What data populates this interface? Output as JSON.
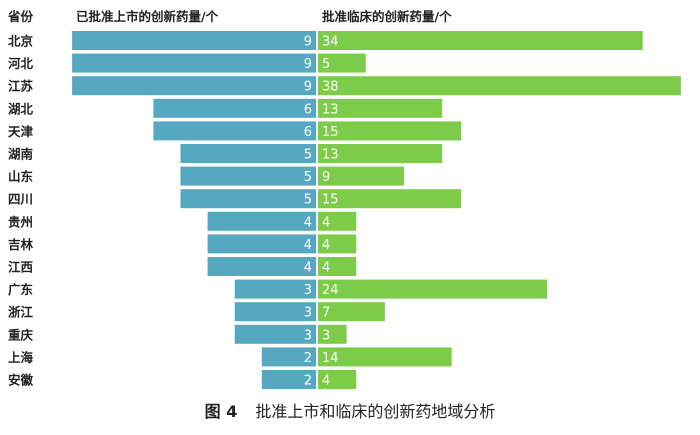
{
  "chart_data": {
    "type": "bar",
    "orientation": "horizontal-butterfly",
    "header_category": "省份",
    "categories": [
      "北京",
      "河北",
      "江苏",
      "湖北",
      "天津",
      "湖南",
      "山东",
      "四川",
      "贵州",
      "吉林",
      "江西",
      "广东",
      "浙江",
      "重庆",
      "上海",
      "安徽"
    ],
    "series": [
      {
        "name": "已批准上市的创新药量/个",
        "color": "#56a8c1",
        "values": [
          9,
          9,
          9,
          6,
          6,
          5,
          5,
          5,
          4,
          4,
          4,
          3,
          3,
          3,
          2,
          2
        ]
      },
      {
        "name": "批准临床的创新药量/个",
        "color": "#7ccc4a",
        "values": [
          34,
          5,
          38,
          13,
          15,
          13,
          9,
          15,
          4,
          4,
          4,
          24,
          7,
          3,
          14,
          4
        ]
      }
    ],
    "grid": false
  },
  "caption": {
    "figure_label": "图 4",
    "text": "批准上市和临床的创新药地域分析"
  }
}
